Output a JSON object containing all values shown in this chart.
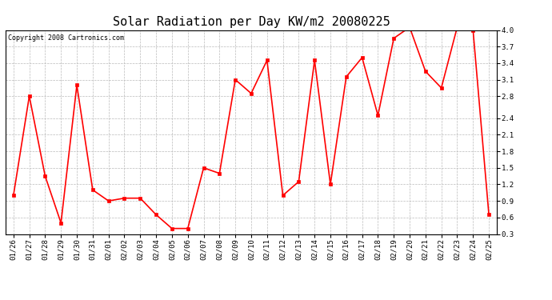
{
  "title": "Solar Radiation per Day KW/m2 20080225",
  "copyright_text": "Copyright 2008 Cartronics.com",
  "dates": [
    "01/26",
    "01/27",
    "01/28",
    "01/29",
    "01/30",
    "01/31",
    "02/01",
    "02/02",
    "02/03",
    "02/04",
    "02/05",
    "02/06",
    "02/07",
    "02/08",
    "02/09",
    "02/10",
    "02/11",
    "02/12",
    "02/13",
    "02/14",
    "02/15",
    "02/16",
    "02/17",
    "02/18",
    "02/19",
    "02/20",
    "02/21",
    "02/22",
    "02/23",
    "02/24",
    "02/25"
  ],
  "values": [
    1.0,
    2.8,
    1.35,
    0.5,
    3.0,
    1.1,
    0.9,
    0.95,
    0.95,
    0.65,
    0.4,
    0.4,
    1.5,
    1.4,
    3.1,
    2.85,
    3.45,
    1.0,
    1.25,
    3.45,
    1.2,
    3.15,
    3.5,
    2.45,
    3.85,
    4.05,
    3.25,
    2.95,
    4.05,
    4.0,
    0.65
  ],
  "line_color": "#ff0000",
  "marker": "s",
  "marker_size": 2.5,
  "line_width": 1.2,
  "bg_color": "#ffffff",
  "grid_color": "#bbbbbb",
  "ylim": [
    0.3,
    4.0
  ],
  "yticks": [
    0.3,
    0.6,
    0.9,
    1.2,
    1.5,
    1.8,
    2.1,
    2.4,
    2.8,
    3.1,
    3.4,
    3.7,
    4.0
  ],
  "title_fontsize": 11,
  "tick_fontsize": 6.5,
  "copyright_fontsize": 6.0
}
